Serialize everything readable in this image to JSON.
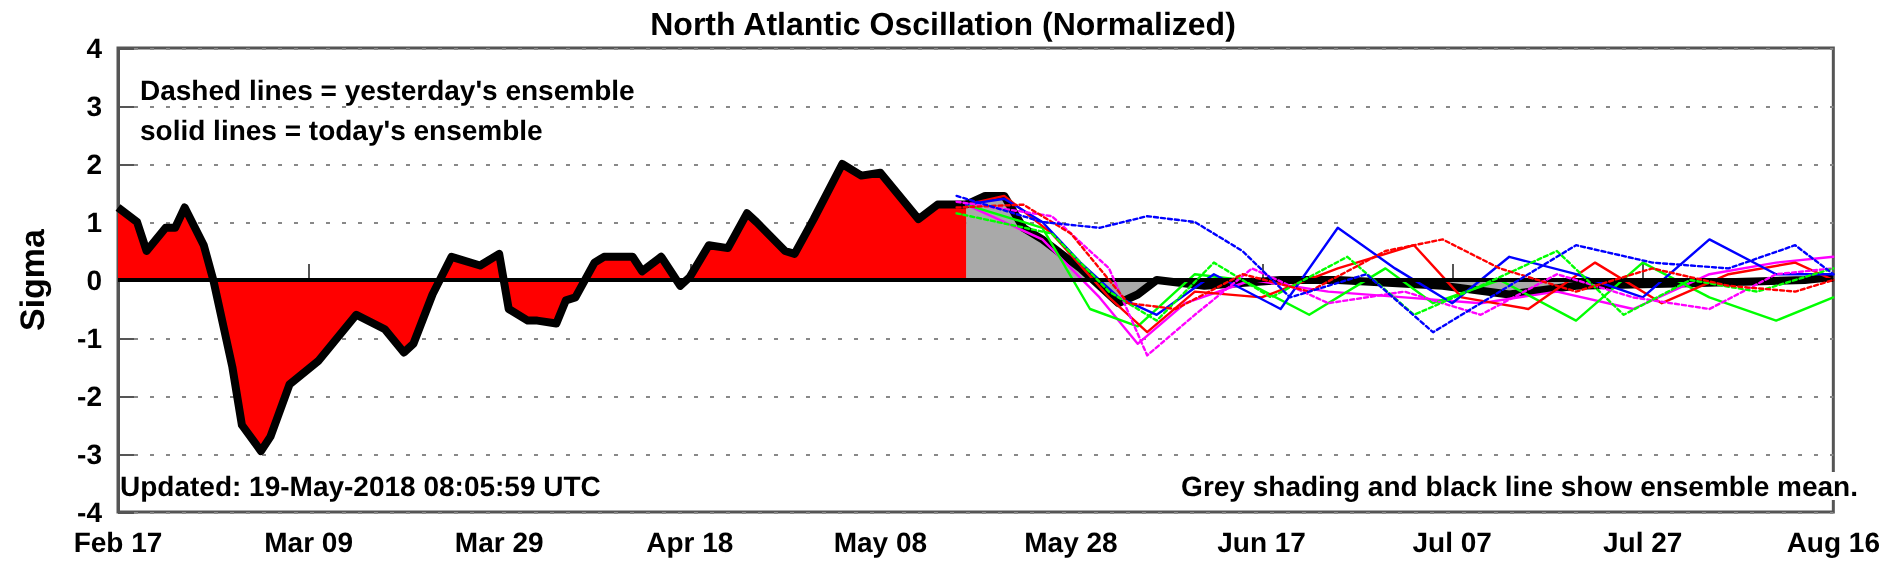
{
  "chart_data": {
    "type": "line",
    "title": "North Atlantic Oscillation (Normalized)",
    "ylabel": "Sigma",
    "annotations": [
      "Dashed lines = yesterday's ensemble",
      "solid lines = today's ensemble",
      "Updated: 19-May-2018 08:05:59 UTC",
      "Grey shading and black line show ensemble mean."
    ],
    "xlim": [
      "2018-02-17",
      "2018-08-16"
    ],
    "xticks": [
      {
        "value": "2018-02-17",
        "label": "Feb 17"
      },
      {
        "value": "2018-03-09",
        "label": "Mar 09"
      },
      {
        "value": "2018-03-29",
        "label": "Mar 29"
      },
      {
        "value": "2018-04-18",
        "label": "Apr 18"
      },
      {
        "value": "2018-05-08",
        "label": "May 08"
      },
      {
        "value": "2018-05-28",
        "label": "May 28"
      },
      {
        "value": "2018-06-17",
        "label": "Jun 17"
      },
      {
        "value": "2018-07-07",
        "label": "Jul 07"
      },
      {
        "value": "2018-07-27",
        "label": "Jul 27"
      },
      {
        "value": "2018-08-16",
        "label": "Aug 16"
      }
    ],
    "ylim": [
      -4,
      4
    ],
    "yticks": [
      -4,
      -3,
      -2,
      -1,
      0,
      1,
      2,
      3,
      4
    ],
    "grid": "y",
    "marker": "none",
    "ref_lines": [
      {
        "axis": "y",
        "value": 0,
        "color": "#000000"
      }
    ],
    "series": [
      {
        "type": "area",
        "color": "#ff0000",
        "x": [
          "2018-02-17",
          "2018-02-19",
          "2018-02-20",
          "2018-02-22",
          "2018-02-23",
          "2018-02-24",
          "2018-02-26",
          "2018-02-27",
          "2018-03-01",
          "2018-03-02",
          "2018-03-04",
          "2018-03-05",
          "2018-03-07",
          "2018-03-10",
          "2018-03-12",
          "2018-03-14",
          "2018-03-17",
          "2018-03-19",
          "2018-03-20",
          "2018-03-22",
          "2018-03-24",
          "2018-03-27",
          "2018-03-29",
          "2018-03-30",
          "2018-04-01",
          "2018-04-02",
          "2018-04-04",
          "2018-04-05",
          "2018-04-06",
          "2018-04-08",
          "2018-04-09",
          "2018-04-12",
          "2018-04-13",
          "2018-04-15",
          "2018-04-17",
          "2018-04-18",
          "2018-04-20",
          "2018-04-22",
          "2018-04-24",
          "2018-04-25",
          "2018-04-28",
          "2018-04-29",
          "2018-05-01",
          "2018-05-04",
          "2018-05-06",
          "2018-05-08",
          "2018-05-12",
          "2018-05-14",
          "2018-05-17"
        ],
        "values": [
          1.25,
          1.0,
          0.5,
          0.9,
          0.9,
          1.25,
          0.6,
          0,
          -1.5,
          -2.5,
          -2.95,
          -2.7,
          -1.8,
          -1.4,
          -1.0,
          -0.6,
          -0.85,
          -1.25,
          -1.1,
          -0.25,
          0.4,
          0.25,
          0.45,
          -0.5,
          -0.7,
          -0.7,
          -0.75,
          -0.35,
          -0.3,
          0.3,
          0.4,
          0.4,
          0.15,
          0.4,
          -0.1,
          0.05,
          0.6,
          0.55,
          1.15,
          1.0,
          0.5,
          0.45,
          1.05,
          2.0,
          1.8,
          1.85,
          1.05,
          1.3,
          1.3
        ]
      },
      {
        "line_style": "solid",
        "color": "#0000ff",
        "x": [
          "2018-05-17",
          "2018-05-21",
          "2018-05-25",
          "2018-05-29",
          "2018-06-02",
          "2018-06-06",
          "2018-06-12",
          "2018-06-19",
          "2018-06-25",
          "2018-07-01",
          "2018-07-07",
          "2018-07-13",
          "2018-07-20",
          "2018-07-27",
          "2018-08-03",
          "2018-08-10",
          "2018-08-16"
        ],
        "values": [
          1.3,
          1.4,
          1.0,
          0.3,
          -0.3,
          -0.6,
          0.1,
          -0.5,
          0.9,
          0.2,
          -0.4,
          0.4,
          0.1,
          -0.3,
          0.7,
          0.1,
          0.1
        ]
      },
      {
        "line_style": "dashed",
        "color": "#0000ff",
        "x": [
          "2018-05-16",
          "2018-05-25",
          "2018-05-31",
          "2018-06-05",
          "2018-06-10",
          "2018-06-15",
          "2018-06-20",
          "2018-06-28",
          "2018-07-05",
          "2018-07-12",
          "2018-07-20",
          "2018-07-28",
          "2018-08-05",
          "2018-08-12",
          "2018-08-16"
        ],
        "values": [
          1.45,
          1.0,
          0.9,
          1.1,
          1.0,
          0.5,
          -0.3,
          0.1,
          -0.9,
          -0.2,
          0.6,
          0.3,
          0.2,
          0.6,
          0.1
        ]
      },
      {
        "line_style": "solid",
        "color": "#ff0000",
        "x": [
          "2018-05-17",
          "2018-05-21",
          "2018-05-26",
          "2018-06-01",
          "2018-06-05",
          "2018-06-10",
          "2018-06-17",
          "2018-06-25",
          "2018-07-03",
          "2018-07-08",
          "2018-07-15",
          "2018-07-22",
          "2018-07-29",
          "2018-08-05",
          "2018-08-12",
          "2018-08-16"
        ],
        "values": [
          1.3,
          1.45,
          0.8,
          -0.3,
          -0.9,
          -0.2,
          -0.3,
          0.2,
          0.6,
          -0.3,
          -0.5,
          0.3,
          -0.4,
          0.1,
          0.3,
          0
        ]
      },
      {
        "line_style": "dashed",
        "color": "#ff0000",
        "x": [
          "2018-05-16",
          "2018-05-23",
          "2018-05-28",
          "2018-06-03",
          "2018-06-08",
          "2018-06-15",
          "2018-06-22",
          "2018-06-30",
          "2018-07-06",
          "2018-07-12",
          "2018-07-20",
          "2018-07-28",
          "2018-08-05",
          "2018-08-12",
          "2018-08-16"
        ],
        "values": [
          1.25,
          1.3,
          0.8,
          -0.4,
          -0.5,
          0.1,
          -0.2,
          0.5,
          0.7,
          0.2,
          -0.2,
          0.2,
          -0.1,
          -0.2,
          0
        ]
      },
      {
        "line_style": "solid",
        "color": "#00ff00",
        "x": [
          "2018-05-17",
          "2018-05-25",
          "2018-05-30",
          "2018-06-04",
          "2018-06-10",
          "2018-06-15",
          "2018-06-22",
          "2018-06-30",
          "2018-07-05",
          "2018-07-12",
          "2018-07-20",
          "2018-07-27",
          "2018-08-03",
          "2018-08-10",
          "2018-08-16"
        ],
        "values": [
          1.3,
          0.9,
          -0.5,
          -0.8,
          0.1,
          0,
          -0.6,
          0.2,
          -0.4,
          0,
          -0.7,
          0.3,
          -0.3,
          -0.7,
          -0.3
        ]
      },
      {
        "line_style": "dashed",
        "color": "#00ff00",
        "x": [
          "2018-05-16",
          "2018-05-26",
          "2018-06-01",
          "2018-06-06",
          "2018-06-12",
          "2018-06-18",
          "2018-06-26",
          "2018-07-03",
          "2018-07-10",
          "2018-07-18",
          "2018-07-25",
          "2018-08-01",
          "2018-08-08",
          "2018-08-16"
        ],
        "values": [
          1.15,
          0.8,
          -0.2,
          -0.7,
          0.3,
          -0.3,
          0.4,
          -0.6,
          -0.1,
          0.5,
          -0.6,
          0,
          -0.2,
          0.2
        ]
      },
      {
        "line_style": "solid",
        "color": "#ff00ff",
        "x": [
          "2018-05-17",
          "2018-05-25",
          "2018-05-31",
          "2018-06-04",
          "2018-06-09",
          "2018-06-16",
          "2018-06-24",
          "2018-07-02",
          "2018-07-10",
          "2018-07-18",
          "2018-07-26",
          "2018-08-03",
          "2018-08-10",
          "2018-08-16"
        ],
        "values": [
          1.3,
          0.7,
          -0.3,
          -1.1,
          -0.4,
          0,
          -0.2,
          -0.3,
          -0.4,
          -0.2,
          -0.5,
          0.1,
          0.3,
          0.4
        ]
      },
      {
        "line_style": "dashed",
        "color": "#ff00ff",
        "x": [
          "2018-05-16",
          "2018-05-26",
          "2018-06-01",
          "2018-06-05",
          "2018-06-10",
          "2018-06-16",
          "2018-06-24",
          "2018-07-02",
          "2018-07-10",
          "2018-07-18",
          "2018-07-26",
          "2018-08-03",
          "2018-08-10",
          "2018-08-16"
        ],
        "values": [
          1.35,
          1.1,
          0.2,
          -1.3,
          -0.6,
          0.2,
          -0.4,
          -0.2,
          -0.6,
          0.1,
          -0.3,
          -0.5,
          0.1,
          0.2
        ]
      },
      {
        "type": "area",
        "color": "#a9a9a9",
        "x": [
          "2018-05-17",
          "2018-05-19",
          "2018-05-21",
          "2018-05-23",
          "2018-05-25",
          "2018-05-29",
          "2018-06-02",
          "2018-06-04",
          "2018-06-06",
          "2018-06-11",
          "2018-06-19",
          "2018-06-25",
          "2018-07-06",
          "2018-07-13",
          "2018-07-20",
          "2018-08-02",
          "2018-08-13",
          "2018-08-16"
        ],
        "values": [
          1.3,
          1.45,
          1.45,
          0.9,
          0.7,
          0.2,
          -0.4,
          -0.25,
          0,
          -0.1,
          0,
          0,
          -0.1,
          -0.25,
          -0.1,
          -0.05,
          0,
          0.05
        ]
      }
    ]
  }
}
